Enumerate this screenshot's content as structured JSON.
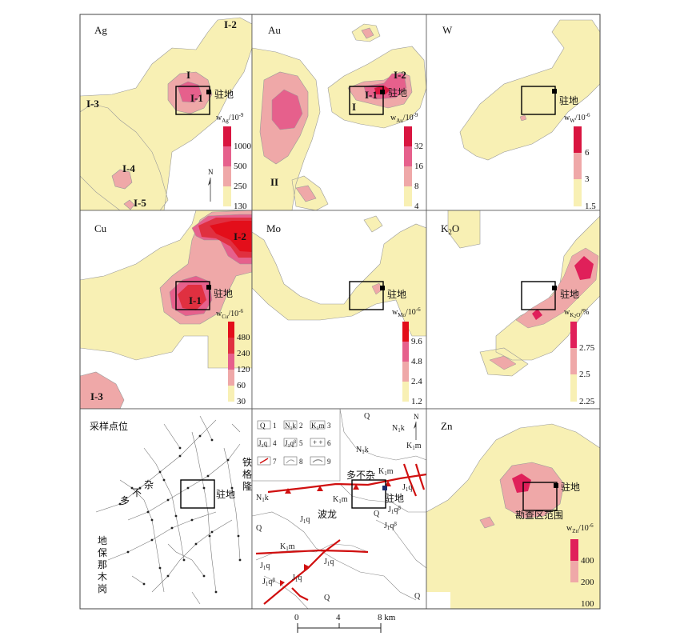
{
  "colors": {
    "low": "#f8f0b4",
    "mid": "#efa8a8",
    "high": "#e6608c",
    "top": "#d91540",
    "veryhigh": "#e0205a",
    "cu_top": "#e30e1a",
    "line": "#444444",
    "box": "#000000",
    "fault": "#d01010"
  },
  "panels": {
    "ag": {
      "title": "Ag",
      "anomalies": [
        "I-2",
        "I",
        "I-1",
        "I-3",
        "I-4",
        "I-5"
      ],
      "camp": "驻地",
      "unit": "w",
      "unit_sub": "Ag",
      "unit_exp": "/10",
      "unit_pow": "-9",
      "ticks": [
        "1000",
        "500",
        "250",
        "130"
      ],
      "north": "N"
    },
    "au": {
      "title": "Au",
      "anomalies": [
        "I-2",
        "I-1",
        "I",
        "II"
      ],
      "camp": "驻地",
      "unit": "w",
      "unit_sub": "Au",
      "unit_exp": "/10",
      "unit_pow": "-9",
      "ticks": [
        "32",
        "16",
        "8",
        "4"
      ]
    },
    "w": {
      "title": "W",
      "camp": "驻地",
      "unit": "w",
      "unit_sub": "W",
      "unit_exp": "/10",
      "unit_pow": "-6",
      "ticks": [
        "6",
        "3",
        "1.5"
      ]
    },
    "cu": {
      "title": "Cu",
      "anomalies": [
        "I-2",
        "I-1",
        "I-3"
      ],
      "camp": "驻地",
      "unit": "w",
      "unit_sub": "Cu",
      "unit_exp": "/10",
      "unit_pow": "-6",
      "ticks": [
        "480",
        "240",
        "120",
        "60",
        "30"
      ]
    },
    "mo": {
      "title": "Mo",
      "camp": "驻地",
      "unit": "w",
      "unit_sub": "Mo",
      "unit_exp": "/10",
      "unit_pow": "-6",
      "ticks": [
        "9.6",
        "4.8",
        "2.4",
        "1.2"
      ]
    },
    "k2o": {
      "title": "K",
      "title_sub": "2",
      "title_end": "O",
      "camp": "驻地",
      "unit": "w",
      "unit_sub": "K",
      "unit_sub2": "2",
      "unit_sub3": "O",
      "unit_exp": "/%",
      "ticks": [
        "2.75",
        "2.5",
        "2.25"
      ]
    },
    "sampling": {
      "title": "采样点位",
      "places": {
        "tiegelong": [
          "铁",
          "格",
          "隆"
        ],
        "duobuza": [
          "多",
          "不",
          "杂"
        ],
        "dibao": [
          "地",
          "保",
          "那",
          "木",
          "岗"
        ]
      },
      "camp": "驻地"
    },
    "geology": {
      "legend": [
        "Q",
        "1",
        "N",
        "1",
        "k",
        "2",
        "K",
        "1",
        "m",
        "3",
        "J",
        "1",
        "q",
        "4",
        "J",
        "1",
        "q",
        "β",
        "5",
        "6",
        "7",
        "8",
        "9"
      ],
      "labels": {
        "q1": "Q",
        "q2": "Q",
        "q3": "Q",
        "q4": "Q",
        "q5": "Q",
        "n": "N",
        "n_sub": "1",
        "n_k": "k",
        "duobuza": "多不杂",
        "bolong": "波龙",
        "camp": "驻地",
        "jq": "J",
        "jq_sub": "1",
        "jq_q": "q",
        "km": "K",
        "km_sub": "1",
        "km_m": "m",
        "beta": "β"
      },
      "north": "N"
    },
    "zn": {
      "title": "Zn",
      "camp": "驻地",
      "area": "勘查区范围",
      "unit": "w",
      "unit_sub": "Zn",
      "unit_exp": "/10",
      "unit_pow": "-6",
      "ticks": [
        "400",
        "200",
        "100"
      ]
    }
  },
  "scale_bar": {
    "ticks": [
      "0",
      "4",
      "8 km"
    ]
  }
}
